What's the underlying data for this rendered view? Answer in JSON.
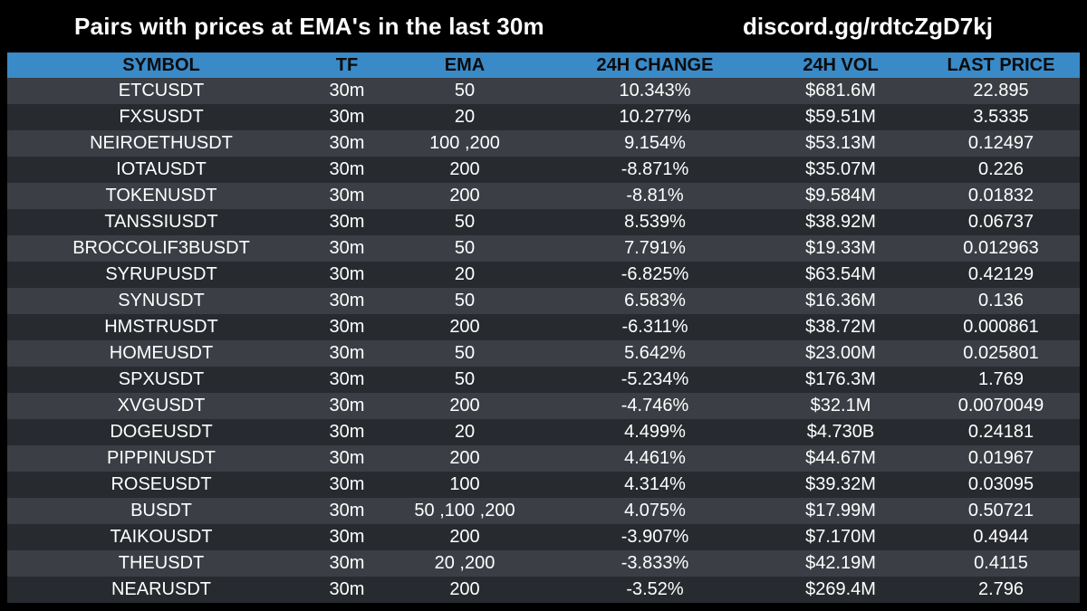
{
  "header": {
    "title": "Pairs with prices at EMA's in the last 30m",
    "invite": "discord.gg/rdtcZgD7kj"
  },
  "table": {
    "columns": {
      "symbol": "SYMBOL",
      "tf": "TF",
      "ema": "EMA",
      "change": "24H CHANGE",
      "vol": "24H VOL",
      "price": "LAST PRICE"
    },
    "rows": [
      {
        "symbol": "ETCUSDT",
        "tf": "30m",
        "ema": "50",
        "change": "10.343%",
        "vol": "$681.6M",
        "price": "22.895"
      },
      {
        "symbol": "FXSUSDT",
        "tf": "30m",
        "ema": "20",
        "change": "10.277%",
        "vol": "$59.51M",
        "price": "3.5335"
      },
      {
        "symbol": "NEIROETHUSDT",
        "tf": "30m",
        "ema": "100 ,200",
        "change": "9.154%",
        "vol": "$53.13M",
        "price": "0.12497"
      },
      {
        "symbol": "IOTAUSDT",
        "tf": "30m",
        "ema": "200",
        "change": "-8.871%",
        "vol": "$35.07M",
        "price": "0.226"
      },
      {
        "symbol": "TOKENUSDT",
        "tf": "30m",
        "ema": "200",
        "change": "-8.81%",
        "vol": "$9.584M",
        "price": "0.01832"
      },
      {
        "symbol": "TANSSIUSDT",
        "tf": "30m",
        "ema": "50",
        "change": "8.539%",
        "vol": "$38.92M",
        "price": "0.06737"
      },
      {
        "symbol": "BROCCOLIF3BUSDT",
        "tf": "30m",
        "ema": "50",
        "change": "7.791%",
        "vol": "$19.33M",
        "price": "0.012963"
      },
      {
        "symbol": "SYRUPUSDT",
        "tf": "30m",
        "ema": "20",
        "change": "-6.825%",
        "vol": "$63.54M",
        "price": "0.42129"
      },
      {
        "symbol": "SYNUSDT",
        "tf": "30m",
        "ema": "50",
        "change": "6.583%",
        "vol": "$16.36M",
        "price": "0.136"
      },
      {
        "symbol": "HMSTRUSDT",
        "tf": "30m",
        "ema": "200",
        "change": "-6.311%",
        "vol": "$38.72M",
        "price": "0.000861"
      },
      {
        "symbol": "HOMEUSDT",
        "tf": "30m",
        "ema": "50",
        "change": "5.642%",
        "vol": "$23.00M",
        "price": "0.025801"
      },
      {
        "symbol": "SPXUSDT",
        "tf": "30m",
        "ema": "50",
        "change": "-5.234%",
        "vol": "$176.3M",
        "price": "1.769"
      },
      {
        "symbol": "XVGUSDT",
        "tf": "30m",
        "ema": "200",
        "change": "-4.746%",
        "vol": "$32.1M",
        "price": "0.0070049"
      },
      {
        "symbol": "DOGEUSDT",
        "tf": "30m",
        "ema": "20",
        "change": "4.499%",
        "vol": "$4.730B",
        "price": "0.24181"
      },
      {
        "symbol": "PIPPINUSDT",
        "tf": "30m",
        "ema": "200",
        "change": "4.461%",
        "vol": "$44.67M",
        "price": "0.01967"
      },
      {
        "symbol": "ROSEUSDT",
        "tf": "30m",
        "ema": "100",
        "change": "4.314%",
        "vol": "$39.32M",
        "price": "0.03095"
      },
      {
        "symbol": "BUSDT",
        "tf": "30m",
        "ema": "50 ,100 ,200",
        "change": "4.075%",
        "vol": "$17.99M",
        "price": "0.50721"
      },
      {
        "symbol": "TAIKOUSDT",
        "tf": "30m",
        "ema": "200",
        "change": "-3.907%",
        "vol": "$7.170M",
        "price": "0.4944"
      },
      {
        "symbol": "THEUSDT",
        "tf": "30m",
        "ema": "20 ,200",
        "change": "-3.833%",
        "vol": "$42.19M",
        "price": "0.4115"
      },
      {
        "symbol": "NEARUSDT",
        "tf": "30m",
        "ema": "200",
        "change": "-3.52%",
        "vol": "$269.4M",
        "price": "2.796"
      }
    ]
  },
  "colors": {
    "background": "#000000",
    "header_row": "#3a8ac8",
    "row_odd": "#3b3e44",
    "row_even": "#272a2f",
    "text": "#ffffff"
  }
}
